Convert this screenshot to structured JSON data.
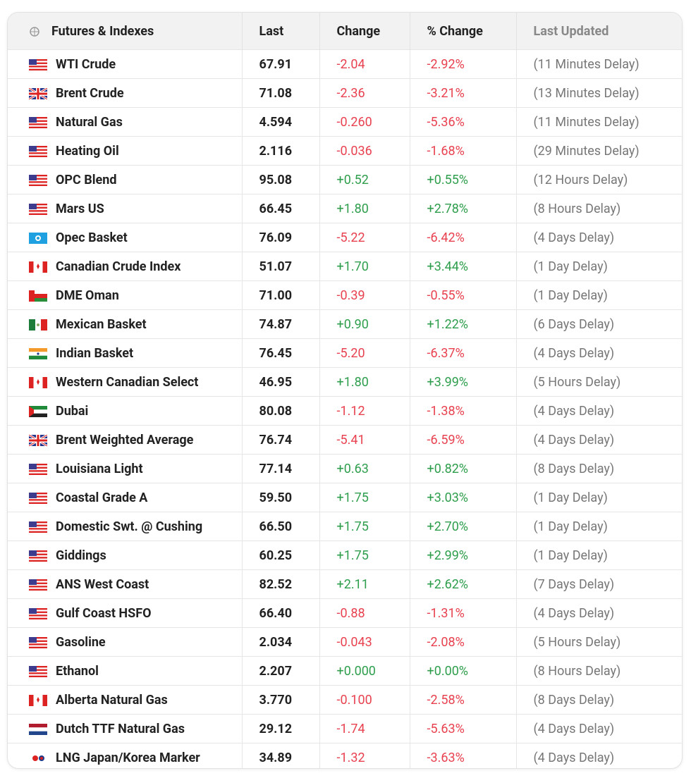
{
  "table": {
    "header": [
      "Futures & Indexes",
      "Last",
      "Change",
      "% Change",
      "Last Updated"
    ],
    "rows": [
      [
        "WTI Crude",
        "67.91",
        "-2.04",
        "-2.92%",
        "(11 Minutes Delay)"
      ],
      [
        "Brent Crude",
        "71.08",
        "-2.36",
        "-3.21%",
        "(13 Minutes Delay)"
      ],
      [
        "Natural Gas",
        "4.594",
        "-0.260",
        "-5.36%",
        "(11 Minutes Delay)"
      ],
      [
        "Heating Oil",
        "2.116",
        "-0.036",
        "-1.68%",
        "(29 Minutes Delay)"
      ],
      [
        "OPC Blend",
        "95.08",
        "+0.52",
        "+0.55%",
        "(12 Hours Delay)"
      ],
      [
        "Mars US",
        "66.45",
        "+1.80",
        "+2.78%",
        "(8 Hours Delay)"
      ],
      [
        "Opec Basket",
        "76.09",
        "-5.22",
        "-6.42%",
        "(4 Days Delay)"
      ],
      [
        "Canadian Crude Index",
        "51.07",
        "+1.70",
        "+3.44%",
        "(1 Day Delay)"
      ],
      [
        "DME Oman",
        "71.00",
        "-0.39",
        "-0.55%",
        "(1 Day Delay)"
      ],
      [
        "Mexican Basket",
        "74.87",
        "+0.90",
        "+1.22%",
        "(6 Days Delay)"
      ],
      [
        "Indian Basket",
        "76.45",
        "-5.20",
        "-6.37%",
        "(4 Days Delay)"
      ],
      [
        "Western Canadian Select",
        "46.95",
        "+1.80",
        "+3.99%",
        "(5 Hours Delay)"
      ],
      [
        "Dubai",
        "80.08",
        "-1.12",
        "-1.38%",
        "(4 Days Delay)"
      ],
      [
        "Brent Weighted Average",
        "76.74",
        "-5.41",
        "-6.59%",
        "(4 Days Delay)"
      ],
      [
        "Louisiana Light",
        "77.14",
        "+0.63",
        "+0.82%",
        "(8 Days Delay)"
      ],
      [
        "Coastal Grade A",
        "59.50",
        "+1.75",
        "+3.03%",
        "(1 Day Delay)"
      ],
      [
        "Domestic Swt. @ Cushing",
        "66.50",
        "+1.75",
        "+2.70%",
        "(1 Day Delay)"
      ],
      [
        "Giddings",
        "60.25",
        "+1.75",
        "+2.99%",
        "(1 Day Delay)"
      ],
      [
        "ANS West Coast",
        "82.52",
        "+2.11",
        "+2.62%",
        "(7 Days Delay)"
      ],
      [
        "Gulf Coast HSFO",
        "66.40",
        "-0.88",
        "-1.31%",
        "(4 Days Delay)"
      ],
      [
        "Gasoline",
        "2.034",
        "-0.043",
        "-2.08%",
        "(5 Hours Delay)"
      ],
      [
        "Ethanol",
        "2.207",
        "+0.000",
        "+0.00%",
        "(8 Hours Delay)"
      ],
      [
        "Alberta Natural Gas",
        "3.770",
        "-0.100",
        "-2.58%",
        "(8 Days Delay)"
      ],
      [
        "Dutch TTF Natural Gas",
        "29.12",
        "-1.74",
        "-5.63%",
        "(4 Days Delay)"
      ],
      [
        "LNG Japan/Korea Marker",
        "34.89",
        "-1.32",
        "-3.63%",
        "(4 Days Delay)"
      ]
    ]
  }
}
